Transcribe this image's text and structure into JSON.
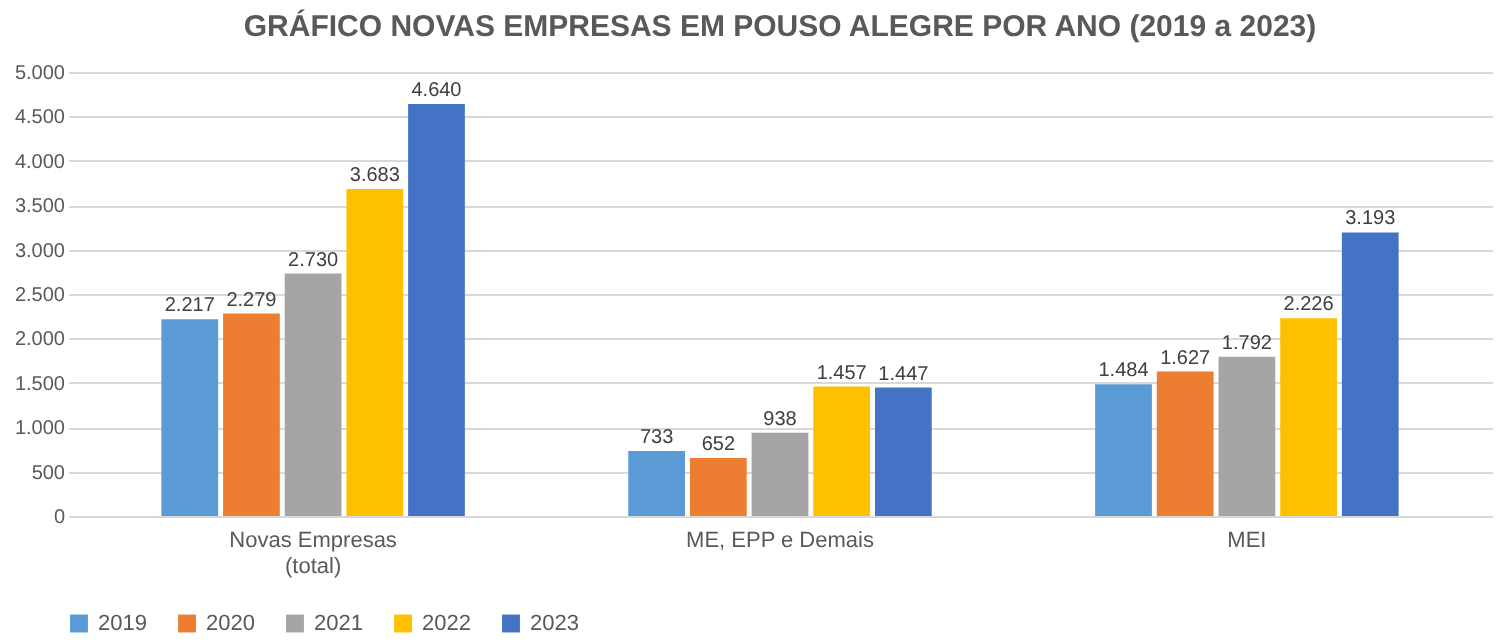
{
  "chart_data": {
    "type": "bar",
    "title": "GRÁFICO NOVAS EMPRESAS EM POUSO ALEGRE POR ANO (2019 a 2023)",
    "categories": [
      "Novas Empresas\n(total)",
      "ME, EPP e Demais",
      "MEI"
    ],
    "series": [
      {
        "name": "2019",
        "color": "#5b9bd5",
        "values": [
          2217,
          733,
          1484
        ],
        "value_labels": [
          "2.217",
          "733",
          "1.484"
        ]
      },
      {
        "name": "2020",
        "color": "#ed7d31",
        "values": [
          2279,
          652,
          1627
        ],
        "value_labels": [
          "2.279",
          "652",
          "1.627"
        ]
      },
      {
        "name": "2021",
        "color": "#a5a5a5",
        "values": [
          2730,
          938,
          1792
        ],
        "value_labels": [
          "2.730",
          "938",
          "1.792"
        ]
      },
      {
        "name": "2022",
        "color": "#ffc000",
        "values": [
          3683,
          1457,
          2226
        ],
        "value_labels": [
          "3.683",
          "1.457",
          "2.226"
        ]
      },
      {
        "name": "2023",
        "color": "#4472c4",
        "values": [
          4640,
          1447,
          3193
        ],
        "value_labels": [
          "4.640",
          "1.447",
          "3.193"
        ]
      }
    ],
    "ylim": [
      0,
      5000
    ],
    "yticks": [
      0,
      {
        "value": 500,
        "label": "500"
      },
      {
        "value": 1000,
        "label": "1.000"
      },
      {
        "value": 1500,
        "label": "1.500"
      },
      {
        "value": 2000,
        "label": "2.000"
      },
      {
        "value": 2500,
        "label": "2.500"
      },
      {
        "value": 3000,
        "label": "3.000"
      },
      {
        "value": 3500,
        "label": "3.500"
      },
      {
        "value": 4000,
        "label": "4.000"
      },
      {
        "value": 4500,
        "label": "4.500"
      },
      {
        "value": 5000,
        "label": "5.000"
      }
    ],
    "grid": "y",
    "legend": "bottom"
  }
}
